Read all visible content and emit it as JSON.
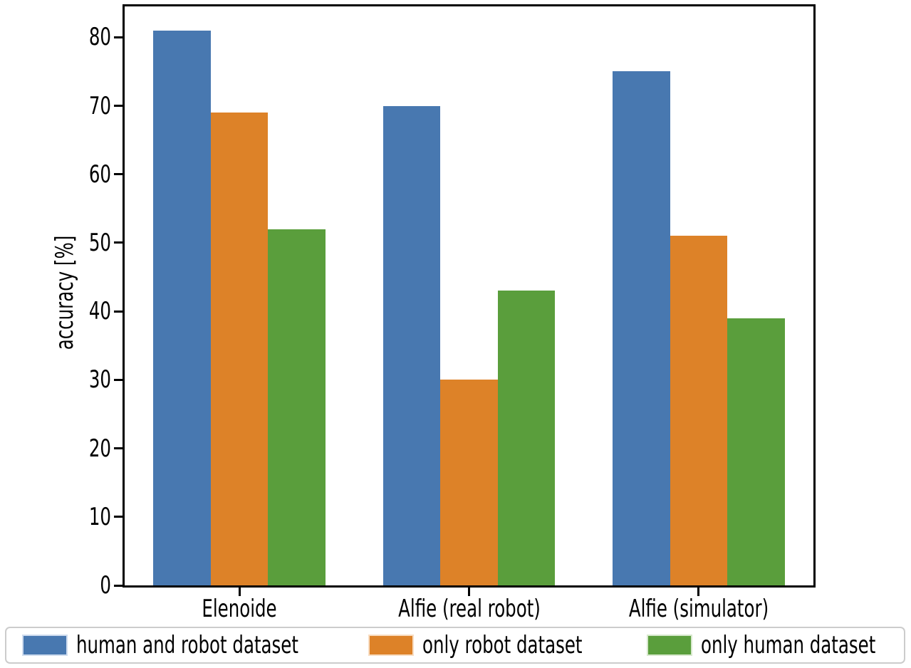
{
  "chart_data": {
    "type": "bar",
    "title": "",
    "xlabel": "",
    "ylabel": "accuracy [%]",
    "categories": [
      "Elenoide",
      "Alfie (real robot)",
      "Alfie (simulator)"
    ],
    "series": [
      {
        "name": "human and robot dataset",
        "color": "#4878B0",
        "edge_color": "#cfdcee",
        "values": [
          81,
          70,
          75
        ]
      },
      {
        "name": "only robot dataset",
        "color": "#DD8228",
        "edge_color": "#f8ddc2",
        "values": [
          69,
          30,
          51
        ]
      },
      {
        "name": "only human dataset",
        "color": "#5A9E3C",
        "edge_color": "#d7e8cd",
        "values": [
          52,
          43,
          39
        ]
      }
    ],
    "ylim": [
      0,
      84.5
    ],
    "yticks": [
      0,
      10,
      20,
      30,
      40,
      50,
      60,
      70,
      80
    ],
    "bar_width_fraction": 0.25,
    "grid": false,
    "legend_position": "bottom",
    "axis_color": "#000000",
    "legend_border_color": "#cccccc"
  }
}
